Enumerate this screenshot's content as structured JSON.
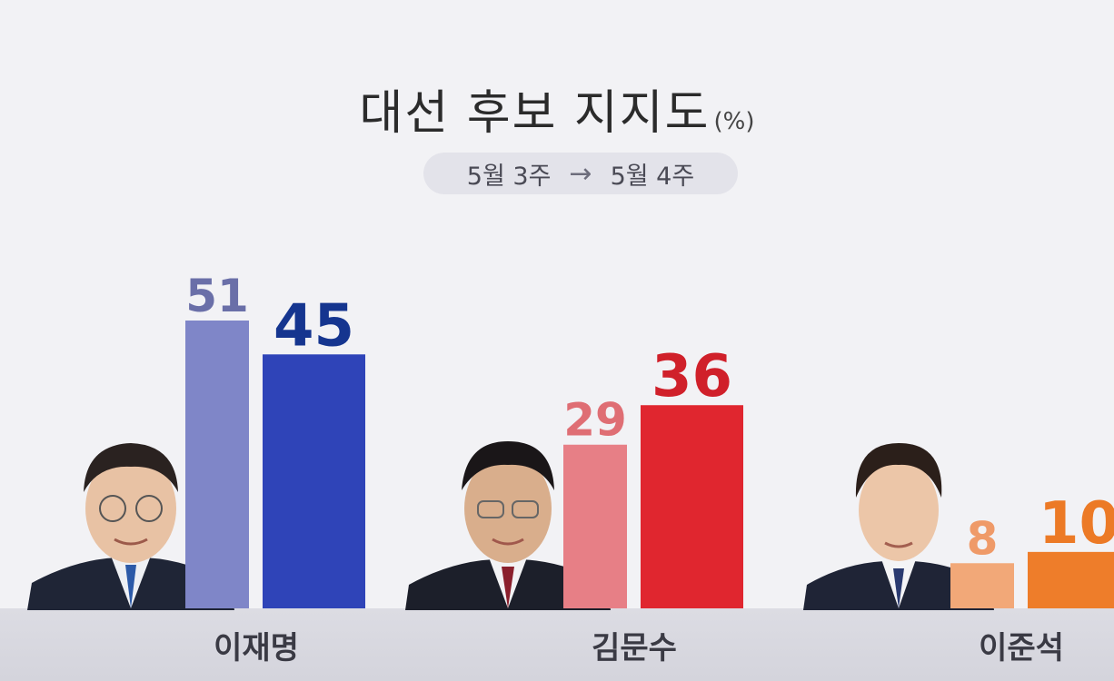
{
  "title": "대선 후보 지지도",
  "unit": "(%)",
  "period": {
    "from": "5월 3주",
    "arrow": "→",
    "to": "5월 4주"
  },
  "colors": {
    "lee_jm_prev": "#7f86c8",
    "lee_jm_curr": "#2f44b8",
    "kim_prev": "#e77f86",
    "kim_curr": "#e0262f",
    "lee_js_prev": "#f2a878",
    "lee_js_curr": "#ee7d2a"
  },
  "chart_data": {
    "type": "bar",
    "title": "대선 후보 지지도",
    "categories": [
      "이재명",
      "김문수",
      "이준석"
    ],
    "series": [
      {
        "name": "5월 3주",
        "values": [
          51,
          29,
          8
        ]
      },
      {
        "name": "5월 4주",
        "values": [
          45,
          36,
          10
        ]
      }
    ],
    "ylim": [
      0,
      51
    ],
    "grid": false,
    "legend": "top-center"
  }
}
